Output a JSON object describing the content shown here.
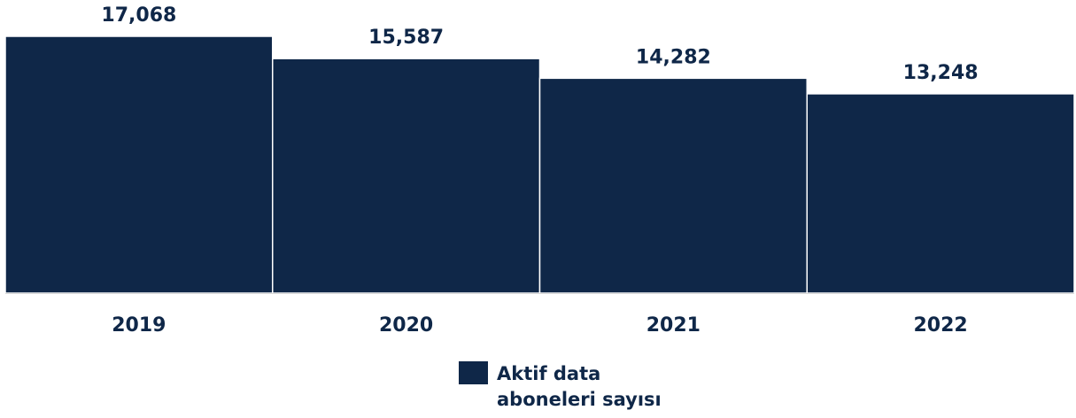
{
  "chart_data": {
    "type": "bar",
    "categories": [
      "2019",
      "2020",
      "2021",
      "2022"
    ],
    "series": [
      {
        "name": "Aktif data aboneleri sayısı",
        "values": [
          17068,
          15587,
          14282,
          13248
        ],
        "value_labels": [
          "17,068",
          "15,587",
          "14,282",
          "13,248"
        ]
      }
    ],
    "title": "",
    "xlabel": "",
    "ylabel": "",
    "ylim": [
      0,
      17068
    ],
    "grid": false,
    "legend_position": "bottom",
    "bar_color": "#0f2748"
  },
  "legend": {
    "label_line1": "Aktif data",
    "label_line2": "aboneleri sayısı"
  }
}
